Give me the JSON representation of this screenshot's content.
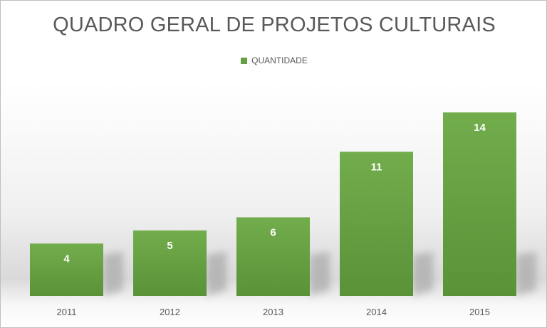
{
  "chart_data": {
    "type": "bar",
    "title": "QUADRO GERAL DE PROJETOS CULTURAIS",
    "categories": [
      "2011",
      "2012",
      "2013",
      "2014",
      "2015"
    ],
    "series": [
      {
        "name": "QUANTIDADE",
        "values": [
          4,
          5,
          6,
          11,
          14
        ]
      }
    ],
    "xlabel": "",
    "ylabel": "",
    "ylim": [
      0,
      14
    ],
    "grid": false,
    "legend": "top-center",
    "colors": {
      "bar_top": "#72ad4c",
      "bar_bottom": "#5a9238",
      "label": "#ffffff",
      "text": "#595959"
    }
  }
}
